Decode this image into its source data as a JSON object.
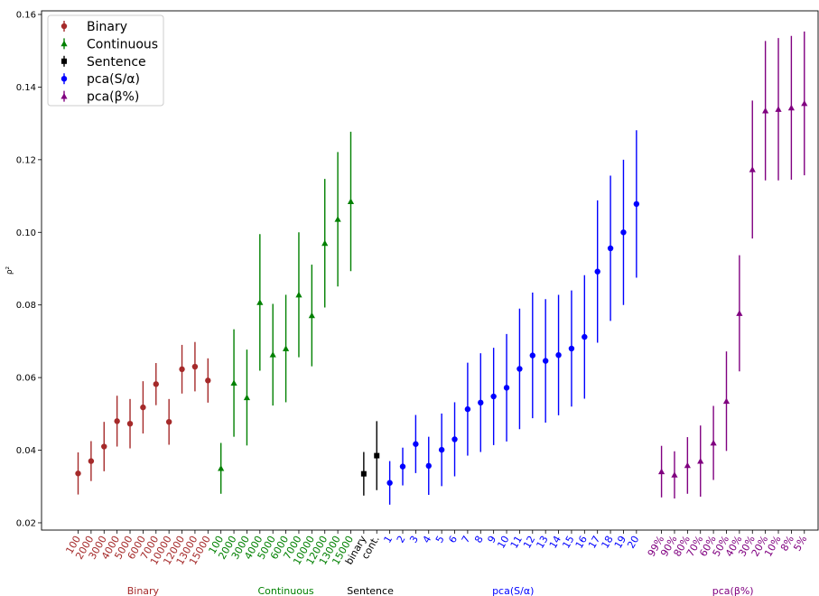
{
  "chart_data": {
    "type": "scatter",
    "ylabel": "ρ²",
    "ylim": [
      0.018,
      0.161
    ],
    "yticks": [
      0.02,
      0.04,
      0.06,
      0.08,
      0.1,
      0.12,
      0.14,
      0.16
    ],
    "ytick_labels": [
      "0.02",
      "0.04",
      "0.06",
      "0.08",
      "0.10",
      "0.12",
      "0.14",
      "0.16"
    ],
    "grid": false,
    "legend": {
      "placement": "top-left",
      "entries": [
        {
          "label": "Binary",
          "color": "#a52a2a",
          "marker": "circle"
        },
        {
          "label": "Continuous",
          "color": "#008000",
          "marker": "triangle"
        },
        {
          "label": "Sentence",
          "color": "#000000",
          "marker": "square"
        },
        {
          "label": "pca(S/α)",
          "color": "#0000ff",
          "marker": "circle"
        },
        {
          "label": "pca(β%)",
          "color": "#800080",
          "marker": "triangle"
        }
      ]
    },
    "series": [
      {
        "name": "Binary",
        "group_label": "Binary",
        "color": "#a52a2a",
        "marker": "circle",
        "categories": [
          "100",
          "2000",
          "3000",
          "4000",
          "5000",
          "6000",
          "7000",
          "10000",
          "12000",
          "13000",
          "15000"
        ],
        "values": [
          0.0336,
          0.037,
          0.041,
          0.048,
          0.0473,
          0.0518,
          0.0582,
          0.0478,
          0.0623,
          0.063,
          0.0592
        ],
        "errors": [
          0.0058,
          0.0055,
          0.0068,
          0.007,
          0.0068,
          0.0072,
          0.0058,
          0.0063,
          0.0067,
          0.0068,
          0.0061
        ]
      },
      {
        "name": "Continuous",
        "group_label": "Continuous",
        "color": "#008000",
        "marker": "triangle",
        "categories": [
          "100",
          "2000",
          "3000",
          "4000",
          "5000",
          "6000",
          "7000",
          "10000",
          "12000",
          "13000",
          "15000"
        ],
        "values": [
          0.035,
          0.0585,
          0.0545,
          0.0807,
          0.0663,
          0.068,
          0.0828,
          0.0771,
          0.097,
          0.1036,
          0.1085
        ],
        "errors": [
          0.007,
          0.0148,
          0.0132,
          0.0188,
          0.014,
          0.0148,
          0.0172,
          0.014,
          0.0177,
          0.0185,
          0.0192
        ]
      },
      {
        "name": "Sentence",
        "group_label": "Sentence",
        "color": "#000000",
        "marker": "square",
        "categories": [
          "binary",
          "cont."
        ],
        "values": [
          0.0335,
          0.0385
        ],
        "errors": [
          0.006,
          0.0095
        ]
      },
      {
        "name": "pca(S/α)",
        "group_label": "pca(S/α)",
        "color": "#0000ff",
        "marker": "circle",
        "categories": [
          "1",
          "2",
          "3",
          "4",
          "5",
          "6",
          "7",
          "8",
          "9",
          "10",
          "11",
          "12",
          "13",
          "14",
          "15",
          "16",
          "17",
          "18",
          "19",
          "20"
        ],
        "values": [
          0.031,
          0.0355,
          0.0417,
          0.0357,
          0.0401,
          0.043,
          0.0513,
          0.0531,
          0.0548,
          0.0572,
          0.0624,
          0.0661,
          0.0646,
          0.0662,
          0.068,
          0.0712,
          0.0892,
          0.0956,
          0.1,
          0.1078
        ],
        "errors": [
          0.006,
          0.0052,
          0.008,
          0.008,
          0.01,
          0.0102,
          0.0128,
          0.0136,
          0.0134,
          0.0148,
          0.0166,
          0.0173,
          0.017,
          0.0166,
          0.016,
          0.017,
          0.0196,
          0.02,
          0.02,
          0.0203
        ]
      },
      {
        "name": "pca(β%)",
        "group_label": "pca(β%)",
        "color": "#800080",
        "marker": "triangle",
        "categories": [
          "99%",
          "90%",
          "80%",
          "70%",
          "60%",
          "50%",
          "40%",
          "30%",
          "20%",
          "10%",
          "8%",
          "5%"
        ],
        "values": [
          0.0341,
          0.0332,
          0.0358,
          0.037,
          0.042,
          0.0535,
          0.0777,
          0.1173,
          0.1335,
          0.1339,
          0.1343,
          0.1355
        ],
        "errors": [
          0.0071,
          0.0065,
          0.0078,
          0.0098,
          0.0102,
          0.0137,
          0.016,
          0.019,
          0.0192,
          0.0196,
          0.0198,
          0.0198
        ]
      }
    ]
  }
}
